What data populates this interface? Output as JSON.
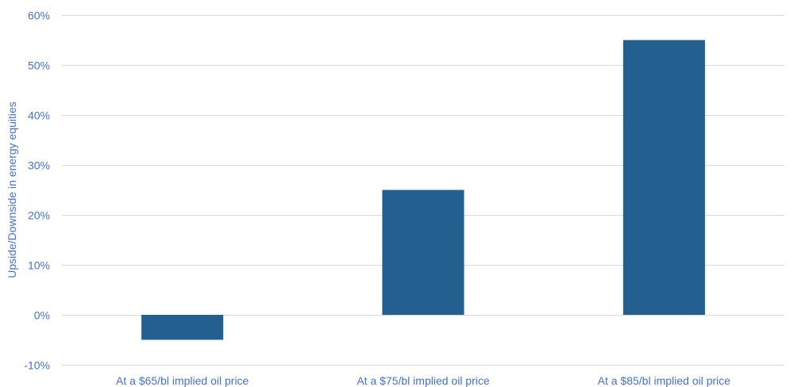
{
  "colors": {
    "bar": "#23608F",
    "text": "#4472C4",
    "grid": "#D9D9D9",
    "background": "#FFFFFF"
  },
  "chart_data": {
    "type": "bar",
    "title": "",
    "xlabel": "",
    "ylabel": "Upside/Downside in energy equities",
    "categories": [
      "At a $65/bl implied oil price",
      "At a $75/bl implied oil price",
      "At a $85/bl implied oil price"
    ],
    "values": [
      -5,
      25,
      55
    ],
    "value_unit": "%",
    "ylim": [
      -10,
      60
    ],
    "yticks": [
      -10,
      0,
      10,
      20,
      30,
      40,
      50,
      60
    ],
    "ytick_labels": [
      "-10%",
      "0%",
      "10%",
      "20%",
      "30%",
      "40%",
      "50%",
      "60%"
    ],
    "grid": true,
    "legend": "none"
  }
}
